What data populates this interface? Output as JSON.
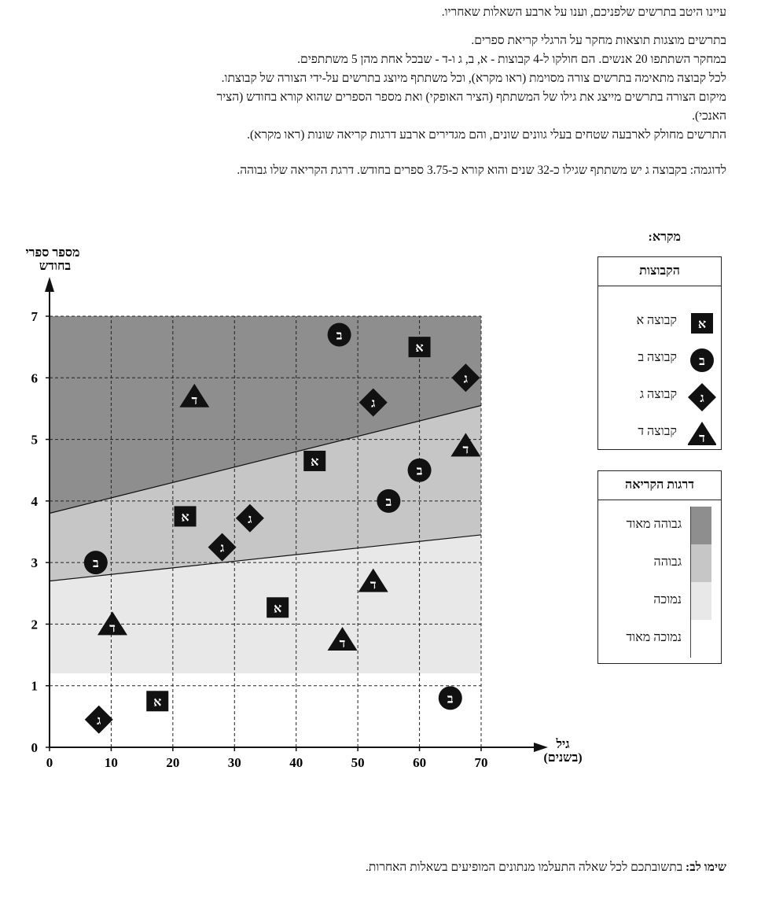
{
  "text": {
    "intro": "עיינו היטב בתרשים שלפניכם, וענו על ארבע השאלות שאחריו.",
    "desc_lines": [
      "בתרשים מוצגות תוצאות מחקר על הרגלי קריאת ספרים.",
      "במחקר השתתפו 20 אנשים. הם חולקו ל-4 קבוצות - א, ב, ג ו-ד - שבכל אחת מהן 5 משתתפים.",
      "לכל קבוצה מתאימה בתרשים צורה מסוימת (ראו מקרא), וכל משתתף מיוצג בתרשים על-ידי הצורה של קבוצתו.",
      "מיקום הצורה בתרשים מייצג את גילו של המשתתף (הציר האופקי) ואת מספר הספרים שהוא קורא בחודש (הציר",
      "האנכי).",
      "התרשים מחולק לארבעה שטחים בעלי גוונים שונים, והם מגדירים ארבע דרגות קריאה שונות (ראו מקרא)."
    ],
    "example": "לדוגמה: בקבוצה ג יש משתתף שגילו כ-32 שנים והוא קורא כ-3.75 ספרים בחודש. דרגת הקריאה שלו גבוהה.",
    "note_bold": "שימו לב:",
    "note_rest": " בתשובתכם לכל שאלה התעלמו מנתונים המופיעים בשאלות האחרות."
  },
  "legend": {
    "title": "מקרא:",
    "groups_title": "הקבוצות",
    "groups": [
      {
        "letter": "א",
        "shape": "square",
        "label": "קבוצה א"
      },
      {
        "letter": "ב",
        "shape": "circle",
        "label": "קבוצה ב"
      },
      {
        "letter": "ג",
        "shape": "diamond",
        "label": "קבוצה ג"
      },
      {
        "letter": "ד",
        "shape": "triangle",
        "label": "קבוצה ד"
      }
    ],
    "levels_title": "דרגות הקריאה",
    "levels": [
      {
        "label": "גבוהה מאוד",
        "color": "#8e8e8e"
      },
      {
        "label": "גבוהה",
        "color": "#c6c6c6"
      },
      {
        "label": "נמוכה",
        "color": "#e8e8e8"
      },
      {
        "label": "נמוכה מאוד",
        "color": "#ffffff"
      }
    ]
  },
  "chart_data": {
    "type": "scatter",
    "xlabel": "גיל",
    "xlabel_unit": "(בשנים)",
    "ylabel_line1": "מספר ספרי",
    "ylabel_line2": "בחודש",
    "xlim": [
      0,
      70
    ],
    "ylim": [
      0,
      7
    ],
    "xticks": [
      0,
      10,
      20,
      30,
      40,
      50,
      60,
      70
    ],
    "yticks": [
      0,
      1,
      2,
      3,
      4,
      5,
      6,
      7
    ],
    "grid": true,
    "regions": {
      "very_high_lower_boundary": [
        [
          0,
          3.8
        ],
        [
          70,
          5.55
        ]
      ],
      "high_lower_boundary": [
        [
          0,
          2.7
        ],
        [
          70,
          3.45
        ]
      ],
      "low_lower_boundary": 1.2
    },
    "series": [
      {
        "name": "א",
        "shape": "square",
        "points": [
          [
            60,
            6.5
          ],
          [
            43,
            4.65
          ],
          [
            22,
            3.75
          ],
          [
            37,
            2.27
          ],
          [
            17.5,
            0.75
          ]
        ]
      },
      {
        "name": "ב",
        "shape": "circle",
        "points": [
          [
            47,
            6.7
          ],
          [
            60,
            4.5
          ],
          [
            55,
            4.0
          ],
          [
            7.5,
            3.0
          ],
          [
            65,
            0.8
          ]
        ]
      },
      {
        "name": "ג",
        "shape": "diamond",
        "points": [
          [
            67.5,
            6.0
          ],
          [
            52.5,
            5.6
          ],
          [
            32.5,
            3.72
          ],
          [
            28,
            3.25
          ],
          [
            8,
            0.45
          ]
        ]
      },
      {
        "name": "ד",
        "shape": "triangle",
        "points": [
          [
            23.5,
            5.7
          ],
          [
            67.5,
            4.9
          ],
          [
            52.5,
            2.7
          ],
          [
            10.2,
            2.0
          ],
          [
            47.5,
            1.75
          ]
        ]
      }
    ]
  }
}
